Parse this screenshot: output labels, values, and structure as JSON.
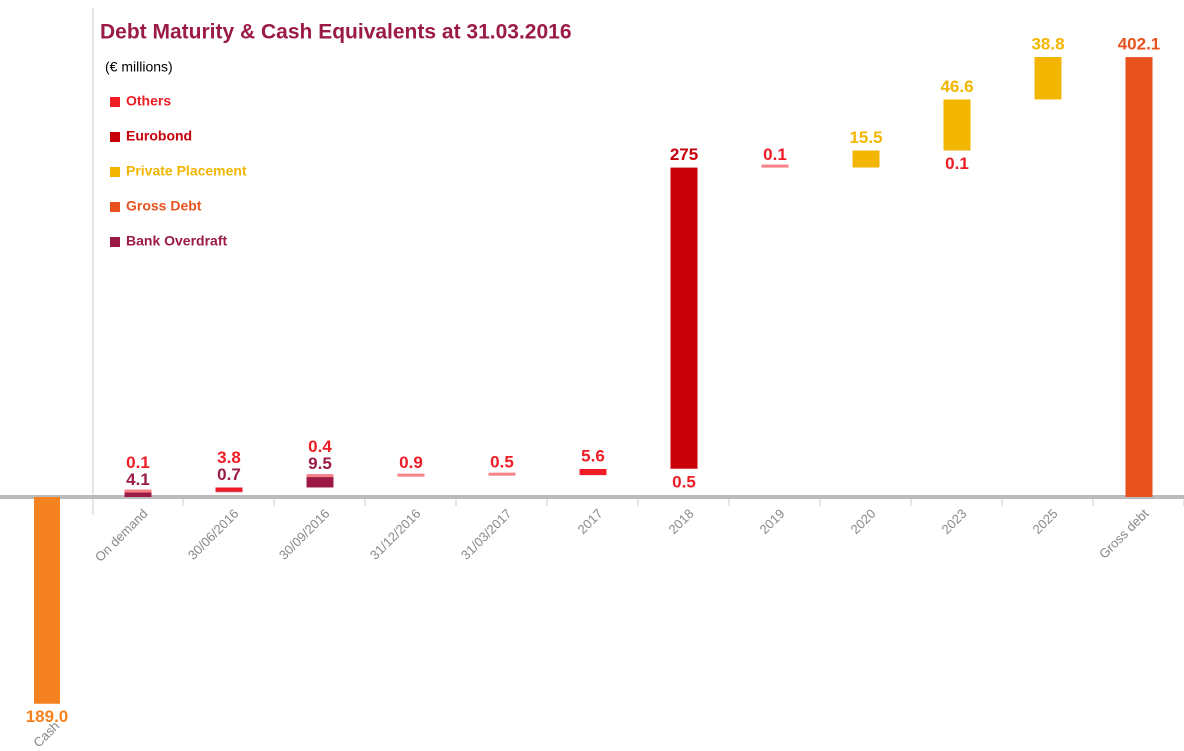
{
  "chart_data": {
    "type": "waterfall",
    "title": "Debt Maturity & Cash Equivalents at 31.03.2016",
    "subtitle": "(€ millions)",
    "categories": [
      "Cash",
      "On demand",
      "30/06/2016",
      "30/09/2016",
      "31/12/2016",
      "31/03/2017",
      "2017",
      "2018",
      "2019",
      "2020",
      "2023",
      "2025",
      "Gross debt"
    ],
    "cash": {
      "value": -189.0,
      "value_label": "189.0",
      "color": "#f58220"
    },
    "series": [
      {
        "name": "Others",
        "color": "#ee1c25",
        "values": [
          null,
          0.1,
          3.8,
          0.4,
          0.9,
          0.5,
          5.6,
          0.5,
          0.1,
          null,
          0.1,
          null,
          null
        ]
      },
      {
        "name": "Eurobond",
        "color": "#c8000a",
        "values": [
          null,
          null,
          null,
          null,
          null,
          null,
          null,
          275,
          null,
          null,
          null,
          null,
          null
        ]
      },
      {
        "name": "Private Placement",
        "color": "#f2b600",
        "values": [
          null,
          null,
          null,
          null,
          null,
          null,
          null,
          null,
          null,
          15.5,
          46.6,
          38.8,
          null
        ]
      },
      {
        "name": "Gross Debt",
        "color": "#e8521f",
        "values": [
          null,
          null,
          null,
          null,
          null,
          null,
          null,
          null,
          null,
          null,
          null,
          null,
          402.1
        ]
      },
      {
        "name": "Bank Overdraft",
        "color": "#9b1b45",
        "values": [
          null,
          4.1,
          0.7,
          9.5,
          null,
          null,
          null,
          null,
          null,
          null,
          null,
          null,
          null
        ]
      }
    ]
  }
}
